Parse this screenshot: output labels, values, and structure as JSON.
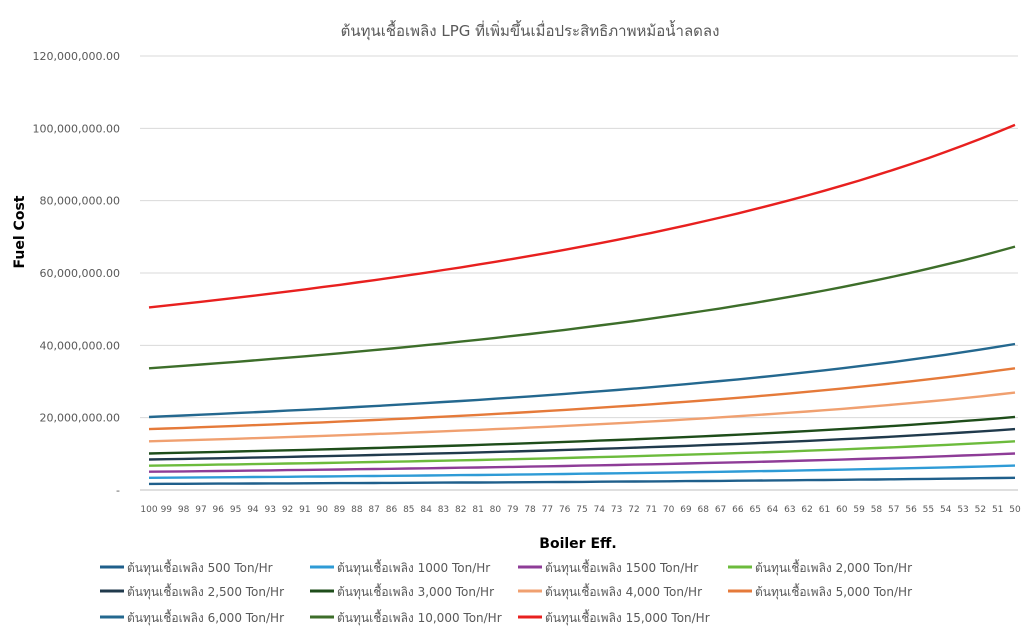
{
  "chart_data": {
    "type": "line",
    "title": "ต้นทุนเชื้อเพลิง LPG ที่เพิ่มขึ้นเมื่อประสิทธิภาพหม้อน้ำลดลง",
    "xlabel": "Boiler Eff.",
    "ylabel": "Fuel Cost",
    "ylim": [
      0,
      120000000
    ],
    "yticks": [
      "-",
      "20,000,000.00",
      "40,000,000.00",
      "60,000,000.00",
      "80,000,000.00",
      "100,000,000.00",
      "120,000,000.00"
    ],
    "x": [
      100,
      99,
      98,
      97,
      96,
      95,
      94,
      93,
      92,
      91,
      90,
      89,
      88,
      87,
      86,
      85,
      84,
      83,
      82,
      81,
      80,
      79,
      78,
      77,
      76,
      75,
      74,
      73,
      72,
      71,
      70,
      69,
      68,
      67,
      66,
      65,
      64,
      63,
      62,
      61,
      60,
      59,
      58,
      57,
      56,
      55,
      54,
      53,
      52,
      51,
      50
    ],
    "x_order": "descending",
    "grid": "horizontal",
    "legend_position": "bottom",
    "series": [
      {
        "name": "ต้นทุนเชื้อเพลิง 500 Ton/Hr",
        "color": "#1f5f8b",
        "value_at_100": 1690000
      },
      {
        "name": "ต้นทุนเชื้อเพลิง 1000 Ton/Hr",
        "color": "#2e9bd6",
        "value_at_100": 3370000
      },
      {
        "name": "ต้นทุนเชื้อเพลิง 1500 Ton/Hr",
        "color": "#8e3c97",
        "value_at_100": 5050000
      },
      {
        "name": "ต้นทุนเชื้อเพลิง 2,000 Ton/Hr",
        "color": "#6cbb3c",
        "value_at_100": 6730000
      },
      {
        "name": "ต้นทุนเชื้อเพลิง 2,500 Ton/Hr",
        "color": "#203a4c",
        "value_at_100": 8420000
      },
      {
        "name": "ต้นทุนเชื้อเพลิง 3,000 Ton/Hr",
        "color": "#1e4d1a",
        "value_at_100": 10100000
      },
      {
        "name": "ต้นทุนเชื้อเพลิง 4,000   Ton/Hr",
        "color": "#f0a070",
        "value_at_100": 13460000
      },
      {
        "name": "ต้นทุนเชื้อเพลิง 5,000 Ton/Hr",
        "color": "#e57a3a",
        "value_at_100": 16830000
      },
      {
        "name": "ต้นทุนเชื้อเพลิง 6,000 Ton/Hr",
        "color": "#24688f",
        "value_at_100": 20190000
      },
      {
        "name": "ต้นทุนเชื้อเพลิง 10,000 Ton/Hr",
        "color": "#3d6e2a",
        "value_at_100": 33650000
      },
      {
        "name": "ต้นทุนเชื้อเพลิง 15,000 Ton/Hr",
        "color": "#e8201f",
        "value_at_100": 50480000
      }
    ]
  }
}
